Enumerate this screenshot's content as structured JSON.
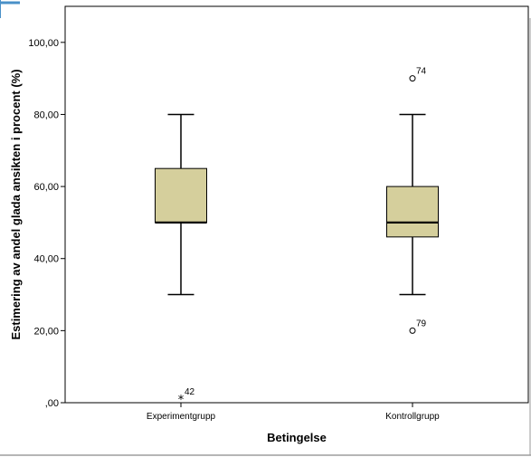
{
  "chart_data": {
    "type": "boxplot",
    "title": "",
    "xlabel": "Betingelse",
    "ylabel": "Estimering av andel glada ansikten i procent (%)",
    "ylim": [
      0,
      110
    ],
    "y_ticks": [
      0,
      20,
      40,
      60,
      80,
      100
    ],
    "y_tick_labels": [
      ",00",
      "20,00",
      "40,00",
      "60,00",
      "80,00",
      "100,00"
    ],
    "grid": false,
    "legend": "none",
    "box_color": "#d5cf9c",
    "categories": [
      "Experimentgrupp",
      "Kontrollgrupp"
    ],
    "boxes": [
      {
        "category": "Experimentgrupp",
        "whisker_low": 30,
        "q1": 50,
        "median": 50,
        "q3": 65,
        "whisker_high": 80,
        "outliers": [
          {
            "value": 1,
            "label": "42",
            "marker": "star"
          }
        ]
      },
      {
        "category": "Kontrollgrupp",
        "whisker_low": 30,
        "q1": 46,
        "median": 50,
        "q3": 60,
        "whisker_high": 80,
        "outliers": [
          {
            "value": 90,
            "label": "74",
            "marker": "circle"
          },
          {
            "value": 20,
            "label": "79",
            "marker": "circle"
          }
        ]
      }
    ]
  }
}
